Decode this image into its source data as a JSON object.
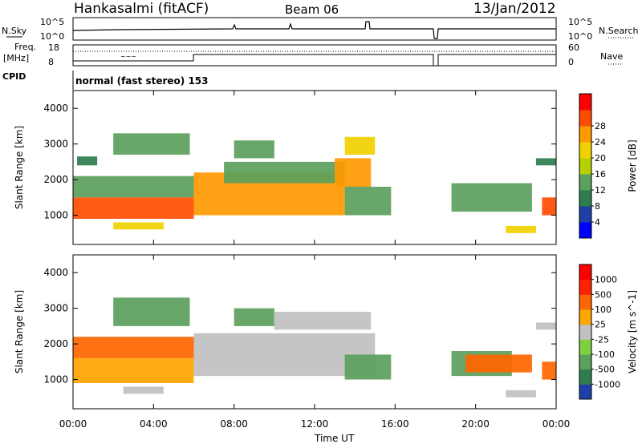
{
  "header": {
    "station": "Hankasalmi (fitACF)",
    "beam": "Beam 06",
    "date": "13/Jan/2012"
  },
  "status": {
    "nsky_label": "N.Sky",
    "nsearch_label": "N.Search",
    "freq_label_1": "Freq.",
    "freq_label_2": "[MHz]",
    "nave_label": "Nave",
    "cpid_label": "CPID",
    "cpid_text": "normal (fast stereo) 153",
    "noise_ticks": [
      "10^5",
      "10^0"
    ],
    "freq_ticks": [
      "18",
      "8"
    ],
    "nave_ticks": [
      "60",
      "0"
    ]
  },
  "chart_data": [
    {
      "type": "heatmap",
      "title": "",
      "xlabel": "Time UT",
      "ylabel": "Slant Range [km]",
      "xlim_hours": [
        0,
        24
      ],
      "ylim_km": [
        180,
        4500
      ],
      "x_ticks": [
        "00:00",
        "04:00",
        "08:00",
        "12:00",
        "16:00",
        "20:00",
        "00:00"
      ],
      "y_ticks": [
        1000,
        2000,
        3000,
        4000
      ],
      "colorbar": {
        "label": "Power [dB]",
        "ticks": [
          4,
          8,
          12,
          16,
          20,
          24,
          28
        ],
        "colors": [
          "#0000ff",
          "#1f3fa8",
          "#2e7d4f",
          "#5ba05c",
          "#b6d000",
          "#f0d000",
          "#ff9900",
          "#ff4d00",
          "#ff0000"
        ]
      },
      "regions": [
        {
          "t0": 0.0,
          "t1": 6.0,
          "r0": 900,
          "r1": 1500,
          "value": 28
        },
        {
          "t0": 0.0,
          "t1": 6.0,
          "r0": 1500,
          "r1": 2100,
          "value": 12
        },
        {
          "t0": 0.2,
          "t1": 1.2,
          "r0": 2400,
          "r1": 2650,
          "value": 8
        },
        {
          "t0": 2.0,
          "t1": 5.8,
          "r0": 2700,
          "r1": 3300,
          "value": 12
        },
        {
          "t0": 2.0,
          "t1": 4.5,
          "r0": 600,
          "r1": 800,
          "value": 20
        },
        {
          "t0": 6.0,
          "t1": 13.5,
          "r0": 1000,
          "r1": 2200,
          "value": 26
        },
        {
          "t0": 7.5,
          "t1": 13.5,
          "r0": 1900,
          "r1": 2500,
          "value": 14
        },
        {
          "t0": 13.0,
          "t1": 14.8,
          "r0": 1800,
          "r1": 2600,
          "value": 24
        },
        {
          "t0": 13.5,
          "t1": 15.0,
          "r0": 2700,
          "r1": 3200,
          "value": 20
        },
        {
          "t0": 13.5,
          "t1": 15.8,
          "r0": 1000,
          "r1": 1800,
          "value": 14
        },
        {
          "t0": 8.0,
          "t1": 10.0,
          "r0": 2600,
          "r1": 3100,
          "value": 12
        },
        {
          "t0": 18.8,
          "t1": 22.8,
          "r0": 1100,
          "r1": 1900,
          "value": 12
        },
        {
          "t0": 21.5,
          "t1": 23.0,
          "r0": 500,
          "r1": 700,
          "value": 20
        },
        {
          "t0": 23.3,
          "t1": 24.0,
          "r0": 1000,
          "r1": 1500,
          "value": 28
        },
        {
          "t0": 23.0,
          "t1": 24.0,
          "r0": 2400,
          "r1": 2600,
          "value": 8
        }
      ]
    },
    {
      "type": "heatmap",
      "title": "",
      "xlabel": "Time UT",
      "ylabel": "Slant Range [km]",
      "xlim_hours": [
        0,
        24
      ],
      "ylim_km": [
        180,
        4500
      ],
      "x_ticks": [
        "00:00",
        "04:00",
        "08:00",
        "12:00",
        "16:00",
        "20:00",
        "00:00"
      ],
      "y_ticks": [
        1000,
        2000,
        3000,
        4000
      ],
      "colorbar": {
        "label": "Velocity [m s^-1]",
        "ticks": [
          1000,
          500,
          100,
          25,
          -25,
          -100,
          -500,
          -1000
        ],
        "colors": [
          "#1f3fa8",
          "#2e7d4f",
          "#5ba05c",
          "#7ed040",
          "#c0c0c0",
          "#ffa500",
          "#ff6600",
          "#ff2200",
          "#ff0000"
        ]
      },
      "regions": [
        {
          "t0": 0.0,
          "t1": 6.0,
          "r0": 900,
          "r1": 1600,
          "value": 60
        },
        {
          "t0": 0.0,
          "t1": 6.0,
          "r0": 1600,
          "r1": 2200,
          "value": 200
        },
        {
          "t0": 2.0,
          "t1": 5.8,
          "r0": 2500,
          "r1": 3300,
          "value": -200
        },
        {
          "t0": 2.5,
          "t1": 4.5,
          "r0": 600,
          "r1": 800,
          "value": 0
        },
        {
          "t0": 6.0,
          "t1": 15.0,
          "r0": 1100,
          "r1": 2300,
          "value": 0
        },
        {
          "t0": 8.0,
          "t1": 10.0,
          "r0": 2500,
          "r1": 3000,
          "value": -300
        },
        {
          "t0": 10.0,
          "t1": 14.8,
          "r0": 2400,
          "r1": 2900,
          "value": 0
        },
        {
          "t0": 13.5,
          "t1": 15.8,
          "r0": 1000,
          "r1": 1700,
          "value": -300
        },
        {
          "t0": 18.8,
          "t1": 21.8,
          "r0": 1100,
          "r1": 1800,
          "value": -200
        },
        {
          "t0": 19.5,
          "t1": 22.8,
          "r0": 1200,
          "r1": 1700,
          "value": 400
        },
        {
          "t0": 21.5,
          "t1": 23.0,
          "r0": 500,
          "r1": 700,
          "value": 0
        },
        {
          "t0": 23.3,
          "t1": 24.0,
          "r0": 1000,
          "r1": 1500,
          "value": 200
        },
        {
          "t0": 23.0,
          "t1": 24.0,
          "r0": 2400,
          "r1": 2600,
          "value": 0
        }
      ]
    }
  ]
}
